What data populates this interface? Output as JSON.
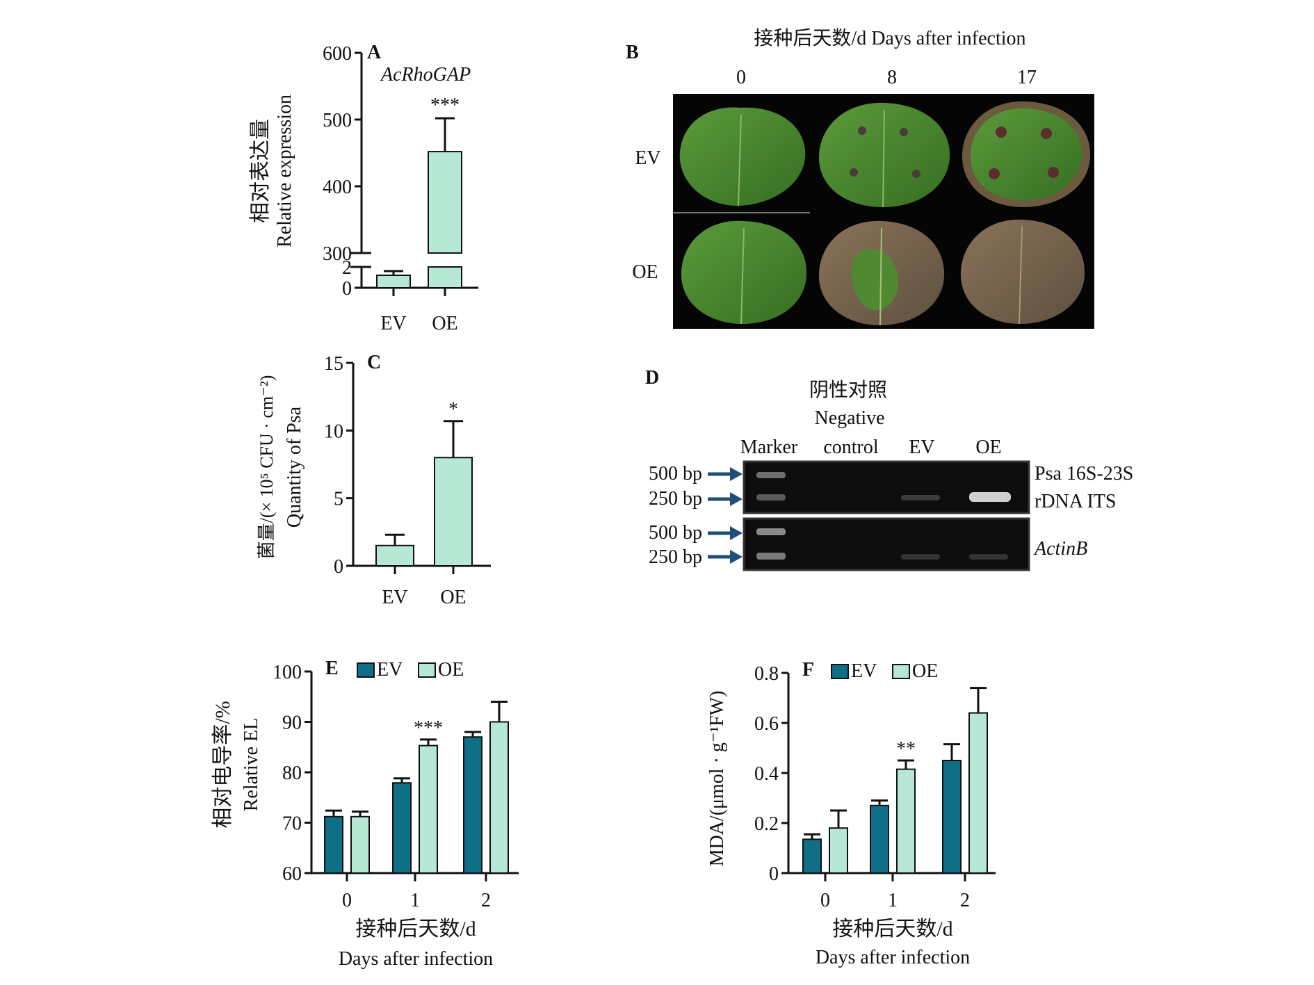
{
  "colors": {
    "ev_dark": "#0f6f86",
    "oe_light": "#b7e8d6",
    "axis": "#111111",
    "gel_bg": "#0d0d0d",
    "arrow": "#1f4e79",
    "photo_bg": "#050505"
  },
  "panel_a": {
    "letter": "A",
    "gene": "AcRhoGAP",
    "ylabel_cn": "相对表达量",
    "ylabel_en": "Relative expression"
  },
  "panel_b": {
    "letter": "B",
    "header": "接种后天数/d Days after infection",
    "days": [
      "0",
      "8",
      "17"
    ],
    "rows": [
      "EV",
      "OE"
    ]
  },
  "panel_c": {
    "letter": "C",
    "ylabel_cn": "菌量/(× 10⁵ CFU · cm⁻²)",
    "ylabel_en": "Quantity of Psa"
  },
  "panel_d": {
    "letter": "D",
    "neg_cn": "阴性对照",
    "neg_en": "Negative",
    "lanes": [
      "Marker",
      "control",
      "EV",
      "OE"
    ],
    "markers_top": [
      "500 bp",
      "250 bp"
    ],
    "markers_bottom": [
      "500 bp",
      "250 bp"
    ],
    "label_top_1": "Psa 16S-23S",
    "label_top_2": "rDNA ITS",
    "label_bottom": "ActinB"
  },
  "panel_e": {
    "letter": "E",
    "ylabel_cn": "相对电导率/%",
    "ylabel_en": "Relative EL",
    "xlabel_cn": "接种后天数/d",
    "xlabel_en": "Days after infection"
  },
  "panel_f": {
    "letter": "F",
    "ylabel": "MDA/(μmol · g⁻¹FW)",
    "xlabel_cn": "接种后天数/d",
    "xlabel_en": "Days after infection"
  },
  "chart_data": [
    {
      "id": "A",
      "type": "bar",
      "categories": [
        "EV",
        "OE"
      ],
      "values": [
        1.2,
        452
      ],
      "errors": [
        0.4,
        50
      ],
      "significance": [
        "",
        "***"
      ],
      "ylim": [
        0,
        600
      ],
      "axis_break": [
        2,
        300
      ],
      "yticks": [
        0,
        2,
        300,
        400,
        500,
        600
      ],
      "ylabel": "Relative expression"
    },
    {
      "id": "C",
      "type": "bar",
      "categories": [
        "EV",
        "OE"
      ],
      "values": [
        1.5,
        8.0
      ],
      "errors": [
        0.8,
        2.7
      ],
      "significance": [
        "",
        "*"
      ],
      "ylim": [
        0,
        15
      ],
      "yticks": [
        0,
        5,
        10,
        15
      ],
      "ylabel": "Quantity of Psa"
    },
    {
      "id": "E",
      "type": "bar",
      "categories": [
        "0",
        "1",
        "2"
      ],
      "series": [
        {
          "name": "EV",
          "values": [
            71.2,
            77.9,
            87.0
          ],
          "errors": [
            1.2,
            0.9,
            1.0
          ]
        },
        {
          "name": "OE",
          "values": [
            71.2,
            85.3,
            90.0
          ],
          "errors": [
            1.0,
            1.2,
            4.0
          ]
        }
      ],
      "significance": [
        "",
        "***",
        ""
      ],
      "ylim": [
        60,
        100
      ],
      "yticks": [
        60,
        70,
        80,
        90,
        100
      ],
      "xlabel": "Days after infection",
      "ylabel": "Relative EL",
      "legend": "top"
    },
    {
      "id": "F",
      "type": "bar",
      "categories": [
        "0",
        "1",
        "2"
      ],
      "series": [
        {
          "name": "EV",
          "values": [
            0.135,
            0.27,
            0.45
          ],
          "errors": [
            0.02,
            0.02,
            0.065
          ]
        },
        {
          "name": "OE",
          "values": [
            0.18,
            0.415,
            0.64
          ],
          "errors": [
            0.07,
            0.035,
            0.1
          ]
        }
      ],
      "significance": [
        "",
        "**",
        ""
      ],
      "ylim": [
        0,
        0.8
      ],
      "yticks": [
        0,
        0.2,
        0.4,
        0.6,
        0.8
      ],
      "ytick_labels": [
        "0",
        "0.2",
        "0.4",
        "0.6",
        "0.8"
      ],
      "xlabel": "Days after infection",
      "ylabel": "MDA/(μmol · g⁻¹FW)",
      "legend": "top"
    }
  ]
}
